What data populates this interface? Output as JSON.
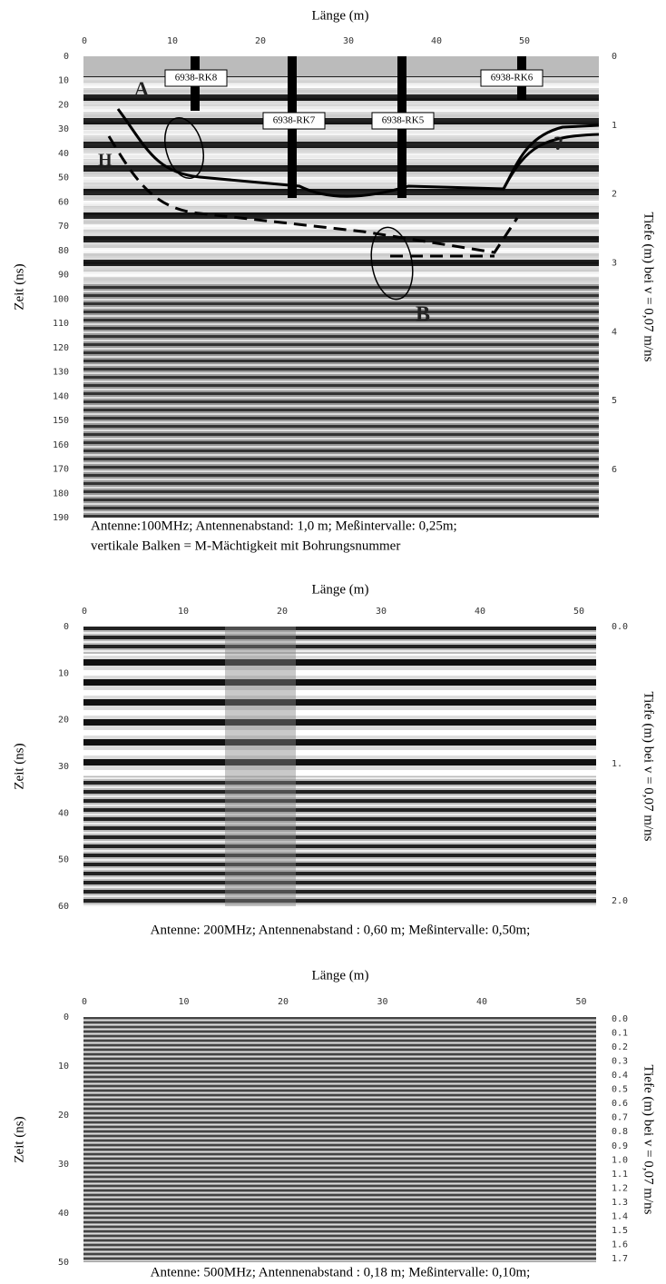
{
  "panels": [
    {
      "title": "Länge (m)",
      "xticks": [
        "0",
        "10",
        "20",
        "30",
        "40",
        "50"
      ],
      "yticks": [
        "0",
        "10",
        "20",
        "30",
        "40",
        "50",
        "60",
        "70",
        "80",
        "90",
        "100",
        "110",
        "120",
        "130",
        "140",
        "150",
        "160",
        "170",
        "180",
        "190"
      ],
      "y2ticks": [
        "0",
        "1",
        "2",
        "3",
        "4",
        "5",
        "6"
      ],
      "ylabel": "Zeit (ns)",
      "y2label": "Tiefe (m) bei v = 0,07 m/ns",
      "captions": [
        "Antenne:100MHz; Antennenabstand: 1,0 m; Meßintervalle: 0,25m;",
        "vertikale Balken = M-Mächtigkeit mit Bohrungsnummer"
      ],
      "boreholes": [
        "6938-RK8",
        "6938-RK7",
        "6938-RK5",
        "6938-RK6"
      ],
      "annotations": [
        "A",
        "H",
        "B",
        "?"
      ]
    },
    {
      "title": "Länge (m)",
      "xticks": [
        "0",
        "10",
        "20",
        "30",
        "40",
        "50"
      ],
      "yticks": [
        "0",
        "10",
        "20",
        "30",
        "40",
        "50",
        "60"
      ],
      "y2ticks": [
        "0.0",
        "1.",
        "2.0"
      ],
      "ylabel": "Zeit (ns)",
      "y2label": "Tiefe (m) bei v = 0,07 m/ns",
      "captions": [
        "Antenne: 200MHz; Antennenabstand : 0,60 m; Meßintervalle: 0,50m;"
      ]
    },
    {
      "title": "Länge (m)",
      "xticks": [
        "0",
        "10",
        "20",
        "30",
        "40",
        "50"
      ],
      "yticks": [
        "0",
        "10",
        "20",
        "30",
        "40",
        "50"
      ],
      "y2ticks": [
        "0.0",
        "0.1",
        "0.2",
        "0.3",
        "0.4",
        "0.5",
        "0.6",
        "0.7",
        "0.8",
        "0.9",
        "1.0",
        "1.1",
        "1.2",
        "1.3",
        "1.4",
        "1.5",
        "1.6",
        "1.7"
      ],
      "ylabel": "Zeit (ns)",
      "y2label": "Tiefe (m) bei v = 0,07 m/ns",
      "captions": [
        "Antenne: 500MHz; Antennenabstand : 0,18 m; Meßintervalle: 0,10m;"
      ]
    }
  ]
}
